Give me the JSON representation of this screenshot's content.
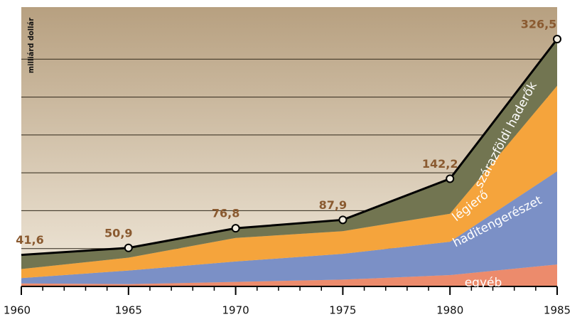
{
  "chart_data": {
    "type": "stacked_area",
    "y_label": "milliárd dollár",
    "x": [
      1960,
      1965,
      1970,
      1975,
      1980,
      1985
    ],
    "series": [
      {
        "name": "egyéb",
        "color": "#ec8b6c",
        "values": [
          4,
          3,
          6,
          9,
          15,
          29
        ]
      },
      {
        "name": "haditengerészet",
        "color": "#7b90c6",
        "values": [
          7,
          18,
          27,
          34,
          44,
          123
        ]
      },
      {
        "name": "légierő",
        "color": "#f5a43c",
        "values": [
          12,
          17,
          31,
          30,
          37,
          113
        ]
      },
      {
        "name": "szárazföldi haderők",
        "color": "#727551",
        "values": [
          18.6,
          12.9,
          12.8,
          14.9,
          46.2,
          61.5
        ]
      }
    ],
    "total": {
      "values": [
        41.6,
        50.9,
        76.8,
        87.9,
        142.2,
        326.5
      ],
      "value_labels": [
        "41,6",
        "50,9",
        "76,8",
        "87,9",
        "142,2",
        "326,5"
      ]
    },
    "xlim": [
      1960,
      1985
    ],
    "xticks": [
      1960,
      1965,
      1970,
      1975,
      1980,
      1985
    ],
    "ylim": [
      0,
      350
    ],
    "yticks": [
      50,
      100,
      150,
      200,
      250,
      300
    ],
    "grid": true
  }
}
